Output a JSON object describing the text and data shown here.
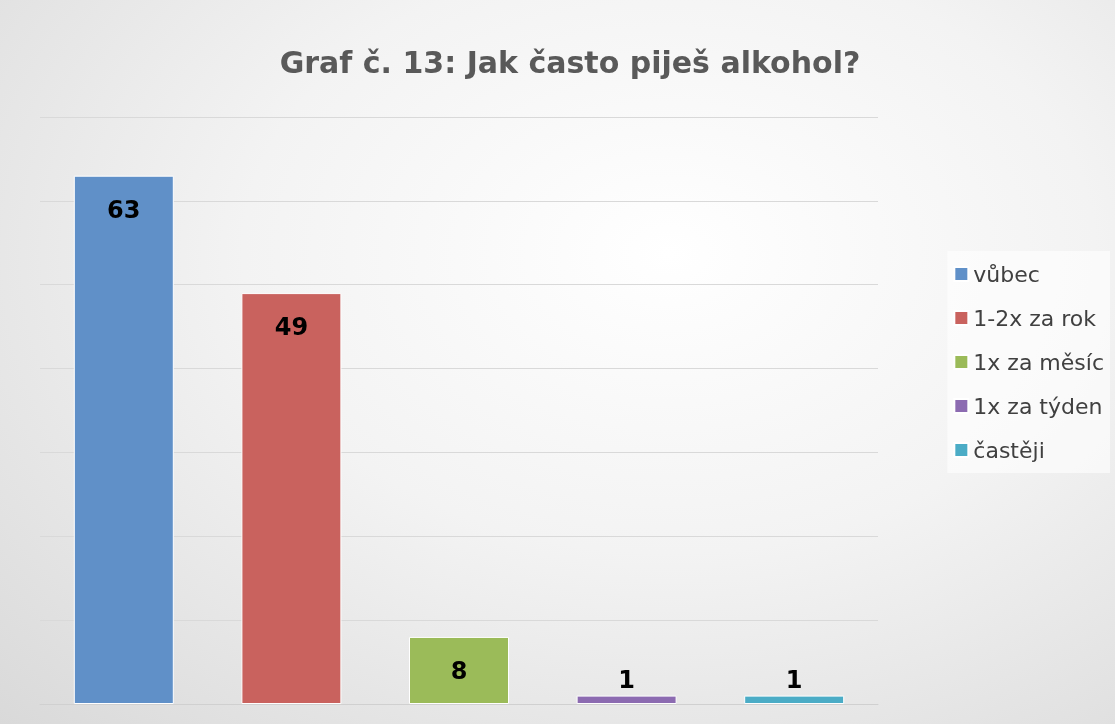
{
  "chart_data": {
    "type": "bar",
    "title": "Graf č. 13: Jak často piješ alkohol?",
    "categories": [
      null,
      null,
      null,
      null,
      null
    ],
    "series": [
      {
        "name": "vůbec",
        "color": "#6090c8",
        "values": [
          63,
          null,
          null,
          null,
          null
        ]
      },
      {
        "name": "1-2x za rok",
        "color": "#c9625e",
        "values": [
          null,
          49,
          null,
          null,
          null
        ]
      },
      {
        "name": "1x za měsíc",
        "color": "#9bbb59",
        "values": [
          null,
          null,
          8,
          null,
          null
        ]
      },
      {
        "name": "1x za týden",
        "color": "#8c6bb1",
        "values": [
          null,
          null,
          null,
          1,
          null
        ]
      },
      {
        "name": "častěji",
        "color": "#4bacc6",
        "values": [
          null,
          null,
          null,
          null,
          1
        ]
      }
    ],
    "stacked": true,
    "ylim": [
      0,
      70
    ],
    "yticks": [
      {
        "value": 0,
        "label": null
      },
      {
        "value": 10,
        "label": null
      },
      {
        "value": 20,
        "label": null
      },
      {
        "value": 30,
        "label": null
      },
      {
        "value": 40,
        "label": null
      },
      {
        "value": 50,
        "label": null
      },
      {
        "value": 60,
        "label": null
      },
      {
        "value": 70,
        "label": null
      }
    ],
    "grid": "y",
    "legend": "right",
    "data_labels": true,
    "tick_labels": false
  }
}
